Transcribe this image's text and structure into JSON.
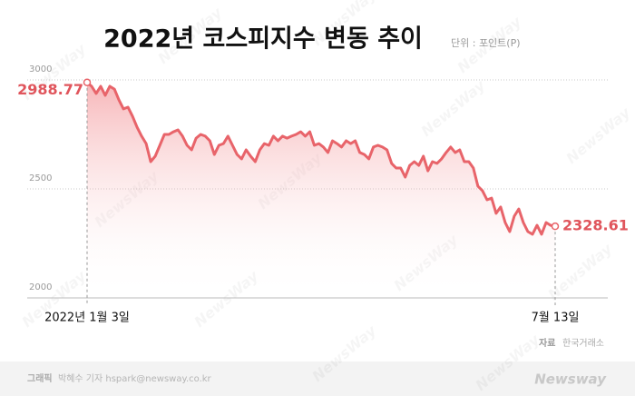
{
  "chart_data": {
    "type": "line",
    "title": "2022년 코스피지수 변동 추이",
    "unit": "단위 : 포인트(P)",
    "source_label": "자료",
    "source": "한국거래소",
    "credit_label": "그래픽",
    "credit": "박혜수 기자 hspark@newsway.co.kr",
    "logo": "Newsway",
    "watermark": "NewsWay",
    "categories": [
      "2022년 1월 3일",
      null,
      null,
      null,
      null,
      null,
      null,
      null,
      null,
      null,
      null,
      null,
      null,
      null,
      null,
      null,
      null,
      null,
      null,
      null,
      null,
      null,
      null,
      null,
      null,
      null,
      null,
      null,
      null,
      null,
      null,
      null,
      null,
      null,
      null,
      null,
      null,
      null,
      null,
      null,
      null,
      null,
      null,
      null,
      null,
      null,
      null,
      null,
      null,
      null,
      null,
      null,
      null,
      null,
      null,
      null,
      null,
      null,
      null,
      null,
      null,
      null,
      null,
      null,
      null,
      null,
      null,
      null,
      null,
      null,
      null,
      null,
      null,
      null,
      null,
      null,
      null,
      null,
      null,
      null,
      null,
      null,
      null,
      null,
      null,
      null,
      null,
      null,
      null,
      null,
      null,
      null,
      null,
      null,
      null,
      null,
      null,
      null,
      null,
      null,
      null,
      null,
      null,
      "7월 13일"
    ],
    "values": [
      2988.77,
      2971,
      2938,
      2971,
      2929,
      2971,
      2958,
      2908,
      2867,
      2875,
      2833,
      2783,
      2742,
      2708,
      2625,
      2650,
      2700,
      2750,
      2750,
      2762,
      2771,
      2742,
      2700,
      2679,
      2733,
      2750,
      2742,
      2721,
      2658,
      2700,
      2708,
      2742,
      2700,
      2658,
      2638,
      2679,
      2650,
      2625,
      2679,
      2708,
      2700,
      2742,
      2721,
      2742,
      2733,
      2742,
      2750,
      2762,
      2742,
      2762,
      2700,
      2708,
      2692,
      2667,
      2721,
      2708,
      2692,
      2721,
      2708,
      2721,
      2667,
      2658,
      2638,
      2692,
      2700,
      2692,
      2679,
      2617,
      2596,
      2596,
      2554,
      2608,
      2625,
      2608,
      2650,
      2583,
      2625,
      2617,
      2638,
      2667,
      2692,
      2667,
      2679,
      2625,
      2625,
      2596,
      2513,
      2492,
      2450,
      2458,
      2388,
      2417,
      2346,
      2304,
      2375,
      2408,
      2346,
      2304,
      2292,
      2333,
      2292,
      2346,
      2333,
      2328.61
    ],
    "color": "#e8646a",
    "ylim": [
      2000,
      3000
    ],
    "yticks": [
      2000,
      2500,
      3000
    ],
    "grid": true
  }
}
